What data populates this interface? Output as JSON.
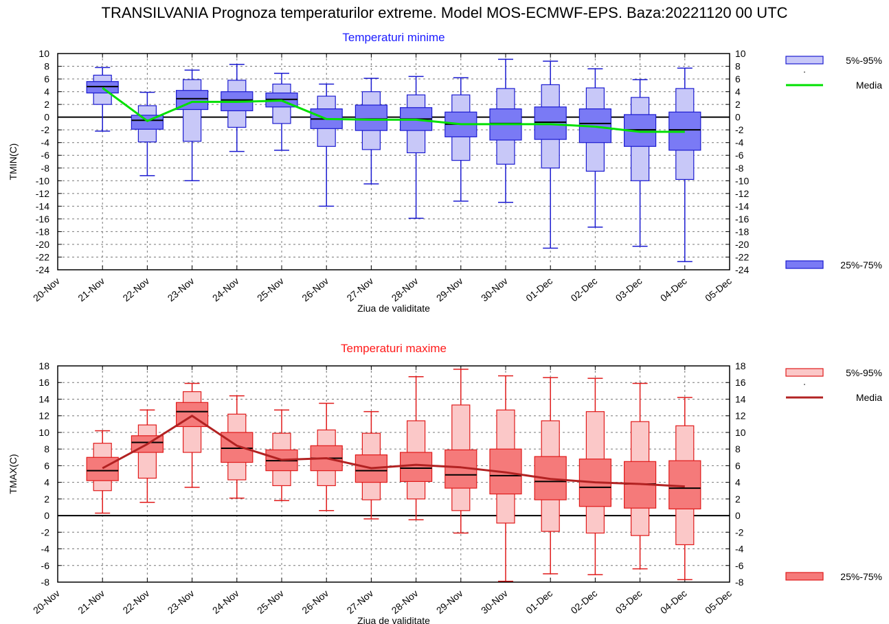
{
  "main_title": "TRANSILVANIA  Prognoza temperaturilor extreme.  Model MOS-ECMWF-EPS. Baza:20221120 00 UTC",
  "chart_data": [
    {
      "type": "boxplot",
      "title": "Temperaturi minime",
      "title_color": "#1a1aff",
      "xlabel": "Ziua de validitate",
      "ylabel": "TMIN(C)",
      "ylim": [
        -24,
        10
      ],
      "y_tick_step": 2,
      "grid": true,
      "categories": [
        "20-Nov",
        "21-Nov",
        "22-Nov",
        "23-Nov",
        "24-Nov",
        "25-Nov",
        "26-Nov",
        "27-Nov",
        "28-Nov",
        "29-Nov",
        "30-Nov",
        "01-Dec",
        "02-Dec",
        "03-Dec",
        "04-Dec",
        "05-Dec"
      ],
      "box_colors": {
        "outer_fill": "#c8c8f8",
        "inner_fill": "#7a7af5",
        "stroke": "#1a1ad0"
      },
      "mean_color": "#00e000",
      "legend": {
        "outer": "5%-95%",
        "mean": "Media",
        "inner": "25%-75%"
      },
      "boxes": [
        {
          "x": "21-Nov",
          "whisker_low": -2.2,
          "p5": 2.0,
          "q1": 3.8,
          "median": 4.8,
          "q3": 5.6,
          "p95": 6.6,
          "whisker_high": 7.8
        },
        {
          "x": "22-Nov",
          "whisker_low": -9.2,
          "p5": -3.9,
          "q1": -1.9,
          "median": -0.5,
          "q3": 0.3,
          "p95": 1.8,
          "whisker_high": 3.9
        },
        {
          "x": "23-Nov",
          "whisker_low": -10.0,
          "p5": -3.8,
          "q1": 1.2,
          "median": 2.9,
          "q3": 4.2,
          "p95": 5.9,
          "whisker_high": 7.4
        },
        {
          "x": "24-Nov",
          "whisker_low": -5.4,
          "p5": -1.6,
          "q1": 1.0,
          "median": 2.7,
          "q3": 4.0,
          "p95": 5.8,
          "whisker_high": 8.3
        },
        {
          "x": "25-Nov",
          "whisker_low": -5.2,
          "p5": -1.0,
          "q1": 1.6,
          "median": 2.8,
          "q3": 3.8,
          "p95": 5.2,
          "whisker_high": 6.9
        },
        {
          "x": "26-Nov",
          "whisker_low": -14.0,
          "p5": -4.6,
          "q1": -1.8,
          "median": -0.3,
          "q3": 1.3,
          "p95": 3.3,
          "whisker_high": 5.2
        },
        {
          "x": "27-Nov",
          "whisker_low": -10.5,
          "p5": -5.1,
          "q1": -2.1,
          "median": -0.3,
          "q3": 1.9,
          "p95": 4.0,
          "whisker_high": 6.1
        },
        {
          "x": "28-Nov",
          "whisker_low": -15.9,
          "p5": -5.6,
          "q1": -2.1,
          "median": -0.3,
          "q3": 1.5,
          "p95": 3.5,
          "whisker_high": 6.4
        },
        {
          "x": "29-Nov",
          "whisker_low": -13.2,
          "p5": -6.8,
          "q1": -3.1,
          "median": -1.1,
          "q3": 0.8,
          "p95": 3.5,
          "whisker_high": 6.2
        },
        {
          "x": "30-Nov",
          "whisker_low": -13.4,
          "p5": -7.4,
          "q1": -3.6,
          "median": -1.0,
          "q3": 1.3,
          "p95": 4.5,
          "whisker_high": 9.1
        },
        {
          "x": "01-Dec",
          "whisker_low": -20.6,
          "p5": -8.0,
          "q1": -3.5,
          "median": -0.8,
          "q3": 1.6,
          "p95": 5.1,
          "whisker_high": 8.8
        },
        {
          "x": "02-Dec",
          "whisker_low": -17.3,
          "p5": -8.5,
          "q1": -4.0,
          "median": -1.0,
          "q3": 1.3,
          "p95": 4.6,
          "whisker_high": 7.6
        },
        {
          "x": "03-Dec",
          "whisker_low": -20.3,
          "p5": -10.0,
          "q1": -4.6,
          "median": -2.0,
          "q3": 0.4,
          "p95": 3.1,
          "whisker_high": 5.9
        },
        {
          "x": "04-Dec",
          "whisker_low": -22.7,
          "p5": -9.8,
          "q1": -5.2,
          "median": -2.0,
          "q3": 0.8,
          "p95": 4.5,
          "whisker_high": 7.7
        }
      ],
      "mean": [
        {
          "x": "21-Nov",
          "y": 4.6
        },
        {
          "x": "22-Nov",
          "y": -0.6
        },
        {
          "x": "23-Nov",
          "y": 2.4
        },
        {
          "x": "24-Nov",
          "y": 2.4
        },
        {
          "x": "25-Nov",
          "y": 2.6
        },
        {
          "x": "26-Nov",
          "y": -0.3
        },
        {
          "x": "27-Nov",
          "y": -0.4
        },
        {
          "x": "28-Nov",
          "y": -0.4
        },
        {
          "x": "29-Nov",
          "y": -1.1
        },
        {
          "x": "30-Nov",
          "y": -1.1
        },
        {
          "x": "01-Dec",
          "y": -1.1
        },
        {
          "x": "02-Dec",
          "y": -1.5
        },
        {
          "x": "03-Dec",
          "y": -2.3
        },
        {
          "x": "04-Dec",
          "y": -2.3
        }
      ]
    },
    {
      "type": "boxplot",
      "title": "Temperaturi maxime",
      "title_color": "#ff1a1a",
      "xlabel": "Ziua de validitate",
      "ylabel": "TMAX(C)",
      "ylim": [
        -8,
        18
      ],
      "y_tick_step": 2,
      "grid": true,
      "categories": [
        "20-Nov",
        "21-Nov",
        "22-Nov",
        "23-Nov",
        "24-Nov",
        "25-Nov",
        "26-Nov",
        "27-Nov",
        "28-Nov",
        "29-Nov",
        "30-Nov",
        "01-Dec",
        "02-Dec",
        "03-Dec",
        "04-Dec",
        "05-Dec"
      ],
      "box_colors": {
        "outer_fill": "#fbc8c8",
        "inner_fill": "#f57a7a",
        "stroke": "#e01a1a"
      },
      "mean_color": "#b22222",
      "legend": {
        "outer": "5%-95%",
        "mean": "Media",
        "inner": "25%-75%"
      },
      "boxes": [
        {
          "x": "21-Nov",
          "whisker_low": 0.3,
          "p5": 3.0,
          "q1": 4.2,
          "median": 5.4,
          "q3": 7.0,
          "p95": 8.7,
          "whisker_high": 10.2
        },
        {
          "x": "22-Nov",
          "whisker_low": 1.6,
          "p5": 4.5,
          "q1": 7.6,
          "median": 8.8,
          "q3": 9.6,
          "p95": 10.9,
          "whisker_high": 12.7
        },
        {
          "x": "23-Nov",
          "whisker_low": 3.4,
          "p5": 7.6,
          "q1": 10.7,
          "median": 12.5,
          "q3": 13.6,
          "p95": 14.9,
          "whisker_high": 15.9
        },
        {
          "x": "24-Nov",
          "whisker_low": 2.1,
          "p5": 4.3,
          "q1": 6.4,
          "median": 8.1,
          "q3": 10.0,
          "p95": 12.2,
          "whisker_high": 14.4
        },
        {
          "x": "25-Nov",
          "whisker_low": 1.8,
          "p5": 3.6,
          "q1": 5.4,
          "median": 6.6,
          "q3": 7.9,
          "p95": 9.9,
          "whisker_high": 12.7
        },
        {
          "x": "26-Nov",
          "whisker_low": 0.6,
          "p5": 3.6,
          "q1": 5.4,
          "median": 6.9,
          "q3": 8.4,
          "p95": 10.3,
          "whisker_high": 13.5
        },
        {
          "x": "27-Nov",
          "whisker_low": -0.4,
          "p5": 1.9,
          "q1": 4.0,
          "median": 5.4,
          "q3": 7.3,
          "p95": 9.9,
          "whisker_high": 12.5
        },
        {
          "x": "28-Nov",
          "whisker_low": -0.5,
          "p5": 2.0,
          "q1": 4.1,
          "median": 5.7,
          "q3": 7.6,
          "p95": 11.4,
          "whisker_high": 16.7
        },
        {
          "x": "29-Nov",
          "whisker_low": -2.1,
          "p5": 0.6,
          "q1": 3.3,
          "median": 4.9,
          "q3": 7.9,
          "p95": 13.3,
          "whisker_high": 17.6
        },
        {
          "x": "30-Nov",
          "whisker_low": -7.9,
          "p5": -0.9,
          "q1": 2.6,
          "median": 4.8,
          "q3": 8.0,
          "p95": 12.7,
          "whisker_high": 16.8
        },
        {
          "x": "01-Dec",
          "whisker_low": -7.0,
          "p5": -1.9,
          "q1": 1.9,
          "median": 4.1,
          "q3": 7.1,
          "p95": 11.4,
          "whisker_high": 16.6
        },
        {
          "x": "02-Dec",
          "whisker_low": -7.1,
          "p5": -2.1,
          "q1": 1.1,
          "median": 3.4,
          "q3": 6.8,
          "p95": 12.5,
          "whisker_high": 16.5
        },
        {
          "x": "03-Dec",
          "whisker_low": -6.4,
          "p5": -2.4,
          "q1": 0.9,
          "median": 3.8,
          "q3": 6.5,
          "p95": 11.3,
          "whisker_high": 15.9
        },
        {
          "x": "04-Dec",
          "whisker_low": -7.7,
          "p5": -3.5,
          "q1": 0.8,
          "median": 3.3,
          "q3": 6.6,
          "p95": 10.8,
          "whisker_high": 14.2
        }
      ],
      "mean": [
        {
          "x": "21-Nov",
          "y": 5.7
        },
        {
          "x": "22-Nov",
          "y": 8.6
        },
        {
          "x": "23-Nov",
          "y": 12.0
        },
        {
          "x": "24-Nov",
          "y": 8.4
        },
        {
          "x": "25-Nov",
          "y": 6.7
        },
        {
          "x": "26-Nov",
          "y": 6.9
        },
        {
          "x": "27-Nov",
          "y": 5.7
        },
        {
          "x": "28-Nov",
          "y": 6.1
        },
        {
          "x": "29-Nov",
          "y": 5.8
        },
        {
          "x": "30-Nov",
          "y": 5.2
        },
        {
          "x": "01-Dec",
          "y": 4.4
        },
        {
          "x": "02-Dec",
          "y": 4.0
        },
        {
          "x": "03-Dec",
          "y": 3.8
        },
        {
          "x": "04-Dec",
          "y": 3.5
        }
      ]
    }
  ]
}
